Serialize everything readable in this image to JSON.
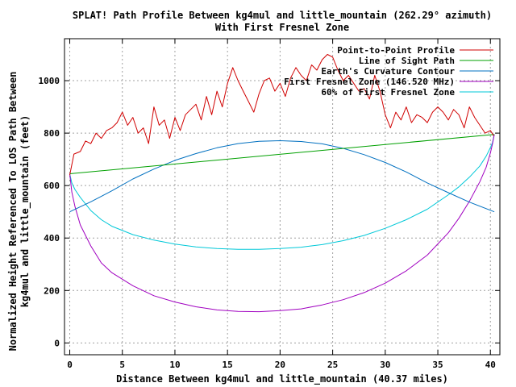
{
  "chart_data": {
    "type": "line",
    "title_line1": "SPLAT! Path Profile Between kg4mul and little_mountain (262.29° azimuth)",
    "title_line2": "With First Fresnel Zone",
    "xlabel": "Distance Between kg4mul and little_mountain (40.37 miles)",
    "ylabel_line1": "Normalized Height Referenced To LOS Path Between",
    "ylabel_line2": "kg4mul and little_mountain (feet)",
    "xlim": [
      -0.5,
      40.9
    ],
    "ylim": [
      -45,
      1160
    ],
    "grid": true,
    "legend_position": "top-right",
    "x_ticks": [
      0,
      5,
      10,
      15,
      20,
      25,
      30,
      35,
      40
    ],
    "y_ticks": [
      0,
      200,
      400,
      600,
      800,
      1000
    ],
    "colors": {
      "terrain": "#d00000",
      "los": "#00a000",
      "curvature": "#0070c0",
      "fresnel": "#a000c0",
      "fresnel60": "#00c8d8",
      "grid": "#a0a0a0",
      "frame": "#000000"
    },
    "series": [
      {
        "key": "terrain",
        "name": "Point-to-Point Profile",
        "x": [
          0,
          0.4,
          1,
          1.5,
          2,
          2.5,
          3,
          3.5,
          4,
          4.5,
          5,
          5.5,
          6,
          6.5,
          7,
          7.5,
          8,
          8.5,
          9,
          9.5,
          10,
          10.5,
          11,
          11.5,
          12,
          12.5,
          13,
          13.5,
          14,
          14.5,
          15,
          15.5,
          16,
          16.5,
          17,
          17.5,
          18,
          18.5,
          19,
          19.5,
          20,
          20.5,
          21,
          21.5,
          22,
          22.5,
          23,
          23.5,
          24,
          24.5,
          25,
          25.5,
          26,
          26.5,
          27,
          27.5,
          28,
          28.5,
          29,
          29.5,
          30,
          30.5,
          31,
          31.5,
          32,
          32.5,
          33,
          33.5,
          34,
          34.5,
          35,
          35.5,
          36,
          36.5,
          37,
          37.5,
          38,
          38.5,
          39,
          39.5,
          40,
          40.3
        ],
        "y": [
          640,
          720,
          730,
          770,
          760,
          800,
          780,
          810,
          820,
          840,
          880,
          830,
          860,
          800,
          820,
          760,
          900,
          830,
          850,
          780,
          860,
          810,
          870,
          890,
          910,
          850,
          940,
          870,
          960,
          900,
          990,
          1050,
          1000,
          960,
          920,
          880,
          950,
          1000,
          1010,
          960,
          990,
          940,
          1010,
          1050,
          1020,
          1000,
          1060,
          1040,
          1080,
          1100,
          1090,
          1040,
          1000,
          1020,
          990,
          960,
          970,
          930,
          1020,
          960,
          870,
          820,
          880,
          850,
          900,
          840,
          870,
          860,
          840,
          880,
          900,
          880,
          850,
          890,
          870,
          820,
          900,
          860,
          830,
          800,
          810,
          790
        ]
      },
      {
        "key": "los",
        "name": "Line of Sight Path",
        "x": [
          0,
          40.37
        ],
        "y": [
          645,
          795
        ]
      },
      {
        "key": "curvature",
        "name": "Earth's Curvature Contour",
        "x": [
          0,
          2,
          4,
          6,
          8,
          10,
          12,
          14,
          16,
          18,
          20,
          22,
          24,
          26,
          28,
          30,
          32,
          34,
          36,
          38,
          40.37
        ],
        "y": [
          500,
          538,
          580,
          625,
          663,
          696,
          722,
          744,
          760,
          769,
          771,
          768,
          759,
          742,
          718,
          688,
          652,
          610,
          573,
          537,
          500
        ]
      },
      {
        "key": "fresnel",
        "name": "First Fresnel Zone (146.520 MHz)",
        "x": [
          0,
          0.2,
          0.5,
          1,
          2,
          3,
          4,
          6,
          8,
          10,
          12,
          14,
          16,
          18,
          20,
          22,
          24,
          26,
          28,
          30,
          32,
          34,
          36,
          37,
          38,
          39,
          39.6,
          40,
          40.2,
          40.37
        ],
        "y": [
          645,
          575,
          520,
          450,
          370,
          305,
          268,
          218,
          180,
          156,
          138,
          126,
          120,
          119,
          123,
          130,
          145,
          165,
          192,
          228,
          275,
          335,
          420,
          475,
          540,
          615,
          670,
          725,
          760,
          795
        ]
      },
      {
        "key": "fresnel60",
        "name": "60% of First Fresnel Zone",
        "x": [
          0,
          0.2,
          0.5,
          1,
          2,
          3,
          4,
          6,
          8,
          10,
          12,
          14,
          16,
          18,
          20,
          22,
          24,
          26,
          28,
          30,
          32,
          34,
          36,
          37,
          38,
          39,
          39.6,
          40,
          40.2,
          40.37
        ],
        "y": [
          645,
          610,
          585,
          555,
          505,
          470,
          445,
          413,
          392,
          377,
          366,
          360,
          357,
          357,
          360,
          365,
          375,
          390,
          410,
          437,
          470,
          510,
          565,
          595,
          632,
          675,
          712,
          745,
          765,
          795
        ]
      }
    ]
  }
}
